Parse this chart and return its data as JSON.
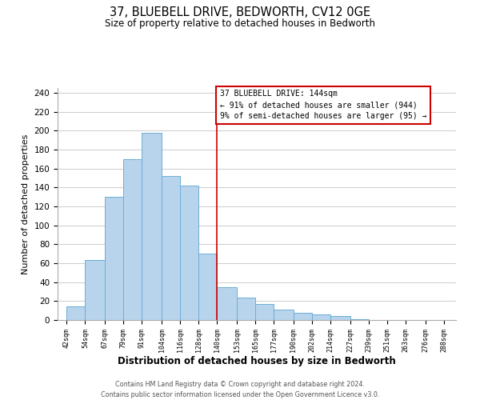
{
  "title": "37, BLUEBELL DRIVE, BEDWORTH, CV12 0GE",
  "subtitle": "Size of property relative to detached houses in Bedworth",
  "xlabel": "Distribution of detached houses by size in Bedworth",
  "ylabel": "Number of detached properties",
  "bar_left_edges": [
    42,
    54,
    67,
    79,
    91,
    104,
    116,
    128,
    140,
    153,
    165,
    177,
    190,
    202,
    214,
    227,
    239,
    251,
    263,
    276
  ],
  "bar_heights": [
    14,
    63,
    130,
    170,
    198,
    152,
    142,
    70,
    35,
    24,
    17,
    11,
    8,
    6,
    4,
    1,
    0,
    0,
    0,
    0
  ],
  "bar_widths": [
    12,
    13,
    12,
    12,
    13,
    12,
    12,
    12,
    13,
    12,
    12,
    13,
    12,
    12,
    13,
    12,
    12,
    12,
    13,
    12
  ],
  "bar_color": "#b8d4ec",
  "bar_edgecolor": "#6baed6",
  "property_line_x": 140,
  "property_line_color": "#cc0000",
  "annotation_line1": "37 BLUEBELL DRIVE: 144sqm",
  "annotation_line2": "← 91% of detached houses are smaller (944)",
  "annotation_line3": "9% of semi-detached houses are larger (95) →",
  "annotation_box_color": "#ffffff",
  "annotation_box_edgecolor": "#cc0000",
  "tick_labels": [
    "42sqm",
    "54sqm",
    "67sqm",
    "79sqm",
    "91sqm",
    "104sqm",
    "116sqm",
    "128sqm",
    "140sqm",
    "153sqm",
    "165sqm",
    "177sqm",
    "190sqm",
    "202sqm",
    "214sqm",
    "227sqm",
    "239sqm",
    "251sqm",
    "263sqm",
    "276sqm",
    "288sqm"
  ],
  "tick_positions": [
    42,
    54,
    67,
    79,
    91,
    104,
    116,
    128,
    140,
    153,
    165,
    177,
    190,
    202,
    214,
    227,
    239,
    251,
    263,
    276,
    288
  ],
  "ylim": [
    0,
    245
  ],
  "xlim": [
    36,
    296
  ],
  "yticks": [
    0,
    20,
    40,
    60,
    80,
    100,
    120,
    140,
    160,
    180,
    200,
    220,
    240
  ],
  "grid_color": "#cccccc",
  "background_color": "#ffffff",
  "footer1": "Contains HM Land Registry data © Crown copyright and database right 2024.",
  "footer2": "Contains public sector information licensed under the Open Government Licence v3.0."
}
